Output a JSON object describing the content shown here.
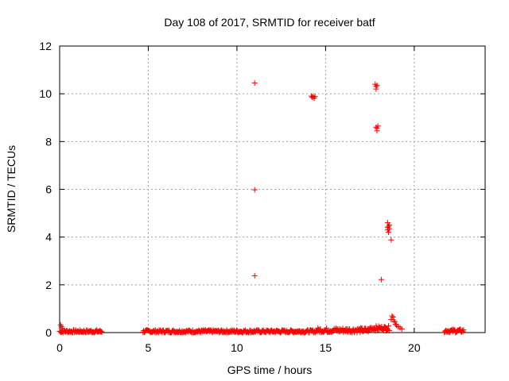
{
  "chart_data": {
    "type": "scatter",
    "title": "Day 108 of 2017, SRMTID for receiver batf",
    "xlabel": "GPS time / hours",
    "ylabel": "SRMTID / TECUs",
    "xlim": [
      0,
      24
    ],
    "ylim": [
      0,
      12
    ],
    "xticks": [
      0,
      5,
      10,
      15,
      20
    ],
    "yticks": [
      0,
      2,
      4,
      6,
      8,
      10,
      12
    ],
    "grid": true,
    "marker": "+",
    "colors": {
      "series": "#ff0000",
      "grid": "#a0a0a0",
      "axis": "#000000"
    },
    "series": [
      {
        "points": [
          [
            11.0,
            10.45
          ],
          [
            11.0,
            5.98
          ],
          [
            11.0,
            2.38
          ],
          [
            14.2,
            9.9
          ],
          [
            14.25,
            9.85
          ],
          [
            14.3,
            9.9
          ],
          [
            14.35,
            9.82
          ],
          [
            14.4,
            9.88
          ],
          [
            17.8,
            10.4
          ],
          [
            17.85,
            10.3
          ],
          [
            17.9,
            10.35
          ],
          [
            17.85,
            10.2
          ],
          [
            17.85,
            8.6
          ],
          [
            17.9,
            8.55
          ],
          [
            17.95,
            8.65
          ],
          [
            17.9,
            8.45
          ],
          [
            18.15,
            2.22
          ],
          [
            18.5,
            4.6
          ],
          [
            18.55,
            4.45
          ],
          [
            18.5,
            4.3
          ],
          [
            18.55,
            4.2
          ],
          [
            18.6,
            4.5
          ],
          [
            18.5,
            4.4
          ],
          [
            18.6,
            4.35
          ],
          [
            18.7,
            3.88
          ]
        ],
        "segments": [
          {
            "x": [
              0.0,
              2.4
            ],
            "y_base": 0.05,
            "y_var": 0.06
          },
          {
            "x": [
              4.7,
              14.5
            ],
            "y_base": 0.05,
            "y_var": 0.06
          },
          {
            "x": [
              14.5,
              17.5
            ],
            "y_base": 0.1,
            "y_var": 0.1
          },
          {
            "x": [
              17.5,
              18.6
            ],
            "y_base": 0.18,
            "y_var": 0.1
          },
          {
            "x": [
              21.7,
              22.8
            ],
            "y_base": 0.07,
            "y_var": 0.07
          }
        ],
        "extras": [
          [
            0.05,
            0.32
          ],
          [
            0.1,
            0.25
          ],
          [
            0.15,
            0.18
          ],
          [
            18.7,
            0.55
          ],
          [
            18.75,
            0.7
          ],
          [
            18.8,
            0.65
          ],
          [
            18.85,
            0.5
          ],
          [
            18.9,
            0.45
          ],
          [
            18.95,
            0.35
          ],
          [
            19.0,
            0.3
          ],
          [
            19.1,
            0.25
          ],
          [
            19.2,
            0.2
          ],
          [
            19.3,
            0.15
          ]
        ]
      }
    ]
  }
}
